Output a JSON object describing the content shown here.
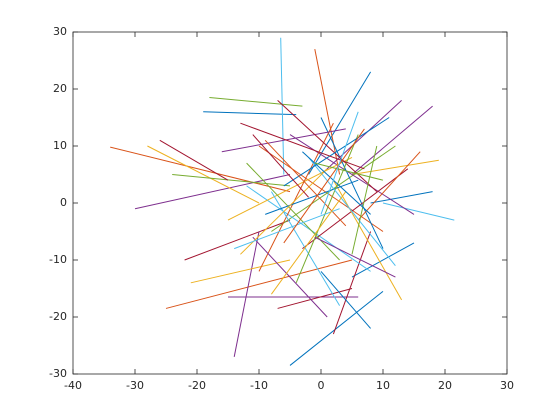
{
  "chart_data": {
    "type": "line",
    "xlim": [
      -40,
      30
    ],
    "xticks": [
      -40,
      -30,
      -20,
      -10,
      0,
      10,
      20,
      30
    ],
    "ylim": [
      -30,
      30
    ],
    "yticks": [
      -30,
      -20,
      -10,
      0,
      10,
      20,
      30
    ],
    "box": true,
    "series": [
      {
        "color": "#D95319",
        "x": [
          -34,
          -5
        ],
        "values": [
          9.8,
          2
        ]
      },
      {
        "color": "#7E2F8E",
        "x": [
          -30,
          -5
        ],
        "values": [
          -1,
          5
        ]
      },
      {
        "color": "#D95319",
        "x": [
          -25,
          5
        ],
        "values": [
          -18.5,
          -10
        ]
      },
      {
        "color": "#A2142F",
        "x": [
          -22,
          -5
        ],
        "values": [
          -10,
          -3
        ]
      },
      {
        "color": "#77AC30",
        "x": [
          -18,
          -3
        ],
        "values": [
          18.5,
          17
        ]
      },
      {
        "color": "#0072BD",
        "x": [
          -19,
          -4
        ],
        "values": [
          16,
          15.5
        ]
      },
      {
        "color": "#4DBEEE",
        "x": [
          -6.5,
          -6
        ],
        "values": [
          29,
          5
        ]
      },
      {
        "color": "#7E2F8E",
        "x": [
          -14,
          -10
        ],
        "values": [
          -27,
          -5
        ]
      },
      {
        "color": "#0072BD",
        "x": [
          -5,
          10
        ],
        "values": [
          -28.5,
          -15.5
        ]
      },
      {
        "color": "#4DBEEE",
        "x": [
          21.5,
          10
        ],
        "values": [
          -3,
          0
        ]
      },
      {
        "color": "#0072BD",
        "x": [
          8,
          -2
        ],
        "values": [
          23,
          5
        ]
      },
      {
        "color": "#7E2F8E",
        "x": [
          18,
          5
        ],
        "values": [
          17,
          5
        ]
      },
      {
        "color": "#7E2F8E",
        "x": [
          -15,
          6
        ],
        "values": [
          -16.5,
          -16.5
        ]
      },
      {
        "color": "#A2142F",
        "x": [
          -7,
          5
        ],
        "values": [
          -18.5,
          -15
        ]
      },
      {
        "color": "#D95319",
        "x": [
          -1,
          3
        ],
        "values": [
          27,
          5
        ]
      },
      {
        "color": "#0072BD",
        "x": [
          18,
          8
        ],
        "values": [
          2,
          0
        ]
      },
      {
        "color": "#EDB120",
        "x": [
          19,
          5
        ],
        "values": [
          7.5,
          5
        ]
      },
      {
        "color": "#0072BD",
        "x": [
          15,
          5
        ],
        "values": [
          -7,
          -13
        ]
      },
      {
        "color": "#EDB120",
        "x": [
          -28,
          -10
        ],
        "values": [
          10,
          0
        ]
      },
      {
        "color": "#77AC30",
        "x": [
          -24,
          -5
        ],
        "values": [
          5,
          3
        ]
      },
      {
        "color": "#A2142F",
        "x": [
          -26,
          -15
        ],
        "values": [
          11,
          4
        ]
      },
      {
        "color": "#EDB120",
        "x": [
          -21,
          -5
        ],
        "values": [
          -14,
          -10
        ]
      },
      {
        "color": "#A2142F",
        "x": [
          2,
          8
        ],
        "values": [
          -23,
          -5
        ]
      },
      {
        "color": "#0072BD",
        "x": [
          8,
          0
        ],
        "values": [
          -22,
          -12
        ]
      },
      {
        "color": "#7E2F8E",
        "x": [
          13,
          0
        ],
        "values": [
          18,
          5
        ]
      },
      {
        "color": "#D95319",
        "x": [
          -10,
          10
        ],
        "values": [
          10,
          -5
        ]
      },
      {
        "color": "#77AC30",
        "x": [
          -8,
          12
        ],
        "values": [
          -5,
          10
        ]
      },
      {
        "color": "#4DBEEE",
        "x": [
          -12,
          8
        ],
        "values": [
          3,
          -12
        ]
      },
      {
        "color": "#7E2F8E",
        "x": [
          -5,
          15
        ],
        "values": [
          12,
          -2
        ]
      },
      {
        "color": "#EDB120",
        "x": [
          -15,
          5
        ],
        "values": [
          -3,
          8
        ]
      },
      {
        "color": "#0072BD",
        "x": [
          0,
          10
        ],
        "values": [
          15,
          -8
        ]
      },
      {
        "color": "#D95319",
        "x": [
          -10,
          2
        ],
        "values": [
          -12,
          14
        ]
      },
      {
        "color": "#A2142F",
        "x": [
          -3,
          14
        ],
        "values": [
          -8,
          6
        ]
      },
      {
        "color": "#77AC30",
        "x": [
          -12,
          3
        ],
        "values": [
          7,
          -10
        ]
      },
      {
        "color": "#4DBEEE",
        "x": [
          3,
          -8
        ],
        "values": [
          -18,
          2
        ]
      },
      {
        "color": "#7E2F8E",
        "x": [
          -16,
          4
        ],
        "values": [
          9,
          13
        ]
      },
      {
        "color": "#EDB120",
        "x": [
          2,
          13
        ],
        "values": [
          4,
          -17
        ]
      },
      {
        "color": "#0072BD",
        "x": [
          -9,
          6
        ],
        "values": [
          -2,
          4
        ]
      },
      {
        "color": "#D95319",
        "x": [
          6,
          16
        ],
        "values": [
          -3,
          9
        ]
      },
      {
        "color": "#A2142F",
        "x": [
          -7,
          9
        ],
        "values": [
          18,
          2
        ]
      },
      {
        "color": "#77AC30",
        "x": [
          -4,
          6
        ],
        "values": [
          -14,
          12
        ]
      },
      {
        "color": "#4DBEEE",
        "x": [
          -2,
          12
        ],
        "values": [
          8,
          -11
        ]
      },
      {
        "color": "#7E2F8E",
        "x": [
          -11,
          1
        ],
        "values": [
          -6,
          -20
        ]
      },
      {
        "color": "#EDB120",
        "x": [
          1,
          -13
        ],
        "values": [
          6,
          -9
        ]
      },
      {
        "color": "#0072BD",
        "x": [
          -6,
          11
        ],
        "values": [
          3,
          15
        ]
      },
      {
        "color": "#D95319",
        "x": [
          4,
          -9
        ],
        "values": [
          -4,
          11
        ]
      },
      {
        "color": "#A2142F",
        "x": [
          -13,
          7
        ],
        "values": [
          14,
          6
        ]
      },
      {
        "color": "#77AC30",
        "x": [
          5,
          9
        ],
        "values": [
          -9,
          10
        ]
      },
      {
        "color": "#4DBEEE",
        "x": [
          -14,
          3
        ],
        "values": [
          -8,
          -1
        ]
      },
      {
        "color": "#7E2F8E",
        "x": [
          -1,
          12
        ],
        "values": [
          -6,
          -13
        ]
      },
      {
        "color": "#EDB120",
        "x": [
          -8,
          4
        ],
        "values": [
          -16,
          2
        ]
      },
      {
        "color": "#0072BD",
        "x": [
          -3,
          8
        ],
        "values": [
          9,
          -2
        ]
      },
      {
        "color": "#D95319",
        "x": [
          7,
          -6
        ],
        "values": [
          13,
          -7
        ]
      },
      {
        "color": "#A2142F",
        "x": [
          -2,
          -11
        ],
        "values": [
          1,
          12
        ]
      },
      {
        "color": "#77AC30",
        "x": [
          10,
          -1
        ],
        "values": [
          4,
          7
        ]
      },
      {
        "color": "#4DBEEE",
        "x": [
          0,
          6
        ],
        "values": [
          -2,
          16
        ]
      }
    ]
  }
}
